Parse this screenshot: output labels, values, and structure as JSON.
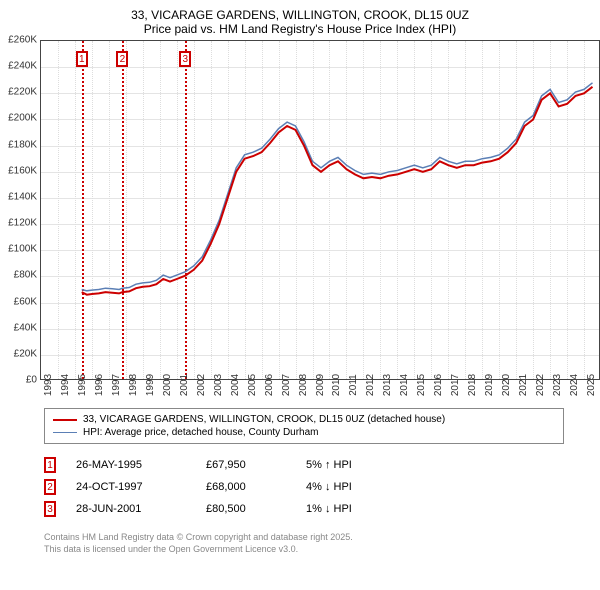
{
  "title": "33, VICARAGE GARDENS, WILLINGTON, CROOK, DL15 0UZ",
  "subtitle": "Price paid vs. HM Land Registry's House Price Index (HPI)",
  "chart": {
    "type": "line",
    "background_color": "#ffffff",
    "grid_color": "#e4e4e4",
    "border_color": "#444444",
    "title_fontsize": 12,
    "axis_fontsize": 10,
    "y": {
      "min": 0,
      "max": 260000,
      "tick_step": 20000,
      "labels": [
        "£0",
        "£20K",
        "£40K",
        "£60K",
        "£80K",
        "£100K",
        "£120K",
        "£140K",
        "£160K",
        "£180K",
        "£200K",
        "£220K",
        "£240K",
        "£260K"
      ]
    },
    "x": {
      "min": 1993,
      "max": 2026,
      "labels": [
        "1993",
        "1994",
        "1995",
        "1996",
        "1997",
        "1998",
        "1999",
        "2000",
        "2001",
        "2002",
        "2003",
        "2004",
        "2005",
        "2006",
        "2007",
        "2008",
        "2009",
        "2010",
        "2011",
        "2012",
        "2013",
        "2014",
        "2015",
        "2016",
        "2017",
        "2018",
        "2019",
        "2020",
        "2021",
        "2022",
        "2023",
        "2024",
        "2025"
      ]
    },
    "series": [
      {
        "name": "property",
        "label": "33, VICARAGE GARDENS, WILLINGTON, CROOK, DL15 0UZ (detached house)",
        "color": "#cc0000",
        "line_width": 2,
        "data": [
          [
            1995.4,
            67950
          ],
          [
            1995.7,
            66000
          ],
          [
            1996.0,
            66500
          ],
          [
            1996.4,
            67000
          ],
          [
            1996.8,
            68000
          ],
          [
            1997.2,
            67500
          ],
          [
            1997.6,
            67000
          ],
          [
            1997.8,
            68000
          ],
          [
            1998.2,
            68500
          ],
          [
            1998.6,
            71000
          ],
          [
            1999.0,
            72000
          ],
          [
            1999.4,
            72500
          ],
          [
            1999.8,
            74000
          ],
          [
            2000.2,
            78000
          ],
          [
            2000.6,
            76000
          ],
          [
            2001.0,
            78000
          ],
          [
            2001.5,
            80500
          ],
          [
            2002.0,
            85000
          ],
          [
            2002.5,
            92000
          ],
          [
            2003.0,
            105000
          ],
          [
            2003.5,
            120000
          ],
          [
            2004.0,
            140000
          ],
          [
            2004.5,
            160000
          ],
          [
            2005.0,
            170000
          ],
          [
            2005.5,
            172000
          ],
          [
            2006.0,
            175000
          ],
          [
            2006.5,
            182000
          ],
          [
            2007.0,
            190000
          ],
          [
            2007.5,
            195000
          ],
          [
            2008.0,
            192000
          ],
          [
            2008.5,
            180000
          ],
          [
            2009.0,
            165000
          ],
          [
            2009.5,
            160000
          ],
          [
            2010.0,
            165000
          ],
          [
            2010.5,
            168000
          ],
          [
            2011.0,
            162000
          ],
          [
            2011.5,
            158000
          ],
          [
            2012.0,
            155000
          ],
          [
            2012.5,
            156000
          ],
          [
            2013.0,
            155000
          ],
          [
            2013.5,
            157000
          ],
          [
            2014.0,
            158000
          ],
          [
            2014.5,
            160000
          ],
          [
            2015.0,
            162000
          ],
          [
            2015.5,
            160000
          ],
          [
            2016.0,
            162000
          ],
          [
            2016.5,
            168000
          ],
          [
            2017.0,
            165000
          ],
          [
            2017.5,
            163000
          ],
          [
            2018.0,
            165000
          ],
          [
            2018.5,
            165000
          ],
          [
            2019.0,
            167000
          ],
          [
            2019.5,
            168000
          ],
          [
            2020.0,
            170000
          ],
          [
            2020.5,
            175000
          ],
          [
            2021.0,
            182000
          ],
          [
            2021.5,
            195000
          ],
          [
            2022.0,
            200000
          ],
          [
            2022.5,
            215000
          ],
          [
            2023.0,
            220000
          ],
          [
            2023.5,
            210000
          ],
          [
            2024.0,
            212000
          ],
          [
            2024.5,
            218000
          ],
          [
            2025.0,
            220000
          ],
          [
            2025.5,
            225000
          ]
        ]
      },
      {
        "name": "hpi",
        "label": "HPI: Average price, detached house, County Durham",
        "color": "#5b7fb5",
        "line_width": 1.5,
        "data": [
          [
            1995.4,
            70000
          ],
          [
            1995.7,
            69000
          ],
          [
            1996.0,
            69500
          ],
          [
            1996.4,
            70000
          ],
          [
            1996.8,
            71000
          ],
          [
            1997.2,
            70500
          ],
          [
            1997.6,
            70000
          ],
          [
            1997.8,
            71000
          ],
          [
            1998.2,
            71500
          ],
          [
            1998.6,
            74000
          ],
          [
            1999.0,
            75000
          ],
          [
            1999.4,
            75500
          ],
          [
            1999.8,
            77000
          ],
          [
            2000.2,
            81000
          ],
          [
            2000.6,
            79000
          ],
          [
            2001.0,
            81000
          ],
          [
            2001.5,
            83500
          ],
          [
            2002.0,
            88000
          ],
          [
            2002.5,
            95000
          ],
          [
            2003.0,
            108000
          ],
          [
            2003.5,
            123000
          ],
          [
            2004.0,
            143000
          ],
          [
            2004.5,
            163000
          ],
          [
            2005.0,
            173000
          ],
          [
            2005.5,
            175000
          ],
          [
            2006.0,
            178000
          ],
          [
            2006.5,
            185000
          ],
          [
            2007.0,
            193000
          ],
          [
            2007.5,
            198000
          ],
          [
            2008.0,
            195000
          ],
          [
            2008.5,
            183000
          ],
          [
            2009.0,
            168000
          ],
          [
            2009.5,
            163000
          ],
          [
            2010.0,
            168000
          ],
          [
            2010.5,
            171000
          ],
          [
            2011.0,
            165000
          ],
          [
            2011.5,
            161000
          ],
          [
            2012.0,
            158000
          ],
          [
            2012.5,
            159000
          ],
          [
            2013.0,
            158000
          ],
          [
            2013.5,
            160000
          ],
          [
            2014.0,
            161000
          ],
          [
            2014.5,
            163000
          ],
          [
            2015.0,
            165000
          ],
          [
            2015.5,
            163000
          ],
          [
            2016.0,
            165000
          ],
          [
            2016.5,
            171000
          ],
          [
            2017.0,
            168000
          ],
          [
            2017.5,
            166000
          ],
          [
            2018.0,
            168000
          ],
          [
            2018.5,
            168000
          ],
          [
            2019.0,
            170000
          ],
          [
            2019.5,
            171000
          ],
          [
            2020.0,
            173000
          ],
          [
            2020.5,
            178000
          ],
          [
            2021.0,
            185000
          ],
          [
            2021.5,
            198000
          ],
          [
            2022.0,
            203000
          ],
          [
            2022.5,
            218000
          ],
          [
            2023.0,
            223000
          ],
          [
            2023.5,
            213000
          ],
          [
            2024.0,
            215000
          ],
          [
            2024.5,
            221000
          ],
          [
            2025.0,
            223000
          ],
          [
            2025.5,
            228000
          ]
        ]
      }
    ],
    "markers": [
      {
        "n": "1",
        "year": 1995.4,
        "color": "#cc0000"
      },
      {
        "n": "2",
        "year": 1997.8,
        "color": "#cc0000"
      },
      {
        "n": "3",
        "year": 2001.5,
        "color": "#cc0000"
      }
    ]
  },
  "sales": [
    {
      "n": "1",
      "date": "26-MAY-1995",
      "price": "£67,950",
      "delta": "5% ↑ HPI",
      "color": "#cc0000"
    },
    {
      "n": "2",
      "date": "24-OCT-1997",
      "price": "£68,000",
      "delta": "4% ↓ HPI",
      "color": "#cc0000"
    },
    {
      "n": "3",
      "date": "28-JUN-2001",
      "price": "£80,500",
      "delta": "1% ↓ HPI",
      "color": "#cc0000"
    }
  ],
  "footer1": "Contains HM Land Registry data © Crown copyright and database right 2025.",
  "footer2": "This data is licensed under the Open Government Licence v3.0."
}
